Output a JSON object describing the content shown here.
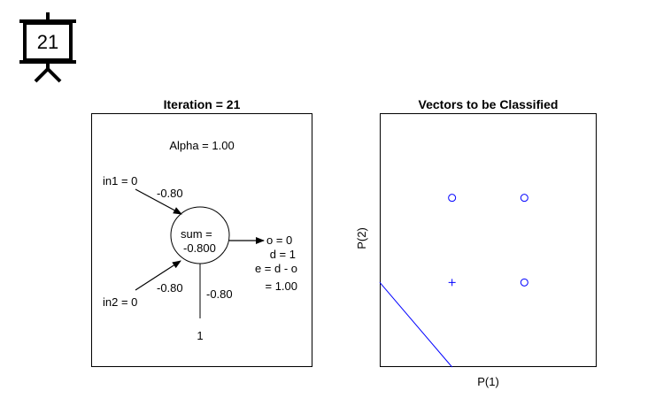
{
  "slide": {
    "number": "21"
  },
  "left_panel": {
    "title": "Iteration = 21",
    "alpha": "Alpha = 1.00",
    "inputs": [
      {
        "label": "in1 = 0",
        "weight": "-0.80"
      },
      {
        "label": "in2 = 0",
        "weight": "-0.80"
      }
    ],
    "bias": {
      "label": "1",
      "weight": "-0.80"
    },
    "neuron": {
      "line1": "sum =",
      "line2": "-0.800"
    },
    "output": {
      "o": "o = 0",
      "d": "d = 1",
      "e_formula": "e = d - o",
      "e_value": "= 1.00"
    }
  },
  "right_panel": {
    "title": "Vectors to be Classified",
    "xlabel": "P(1)",
    "ylabel": "P(2)"
  },
  "colors": {
    "accent": "#0000ff",
    "axis": "#000000"
  },
  "chart_data": {
    "type": "scatter",
    "title": "Vectors to be Classified",
    "xlabel": "P(1)",
    "ylabel": "P(2)",
    "xlim": [
      -1,
      2
    ],
    "ylim": [
      -1,
      2
    ],
    "points": [
      {
        "x": 0,
        "y": 0,
        "marker": "plus"
      },
      {
        "x": 0,
        "y": 1,
        "marker": "circle"
      },
      {
        "x": 1,
        "y": 0,
        "marker": "circle"
      },
      {
        "x": 1,
        "y": 1,
        "marker": "circle"
      }
    ],
    "boundary": {
      "weights": [
        -0.8,
        -0.8
      ],
      "bias": -0.8
    }
  }
}
